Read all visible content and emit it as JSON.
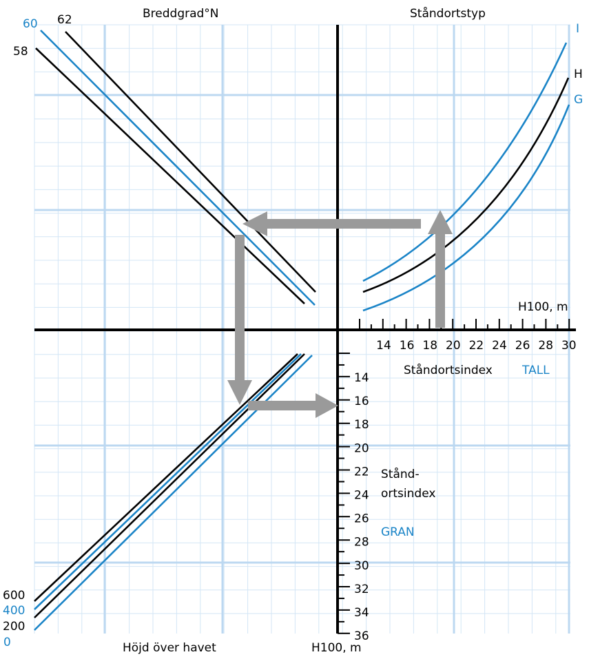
{
  "colors": {
    "black": "#000000",
    "blue": "#1a84c7",
    "grid_fine": "#cfe3f5",
    "grid_major": "#bcd8f1",
    "arrow": "#9a9a9a"
  },
  "top_left": {
    "title": "Breddgrad°N",
    "latitude_labels": {
      "l60": "60",
      "l62": "62",
      "l58": "58"
    }
  },
  "top_right": {
    "title": "Ståndortstyp",
    "curve_labels": {
      "I": "I",
      "H": "H",
      "G": "G"
    },
    "axis_unit": "H100, m",
    "axis_ticks": [
      "14",
      "16",
      "18",
      "20",
      "22",
      "24",
      "26",
      "28",
      "30"
    ],
    "index_label": "Ståndortsindex",
    "species": "TALL"
  },
  "bottom_right": {
    "axis_ticks": [
      "14",
      "16",
      "18",
      "20",
      "22",
      "24",
      "26",
      "28",
      "30",
      "32",
      "34",
      "36"
    ],
    "index_label_line1": "Stånd-",
    "index_label_line2": "ortsindex",
    "species": "GRAN",
    "axis_unit": "H100, m"
  },
  "bottom_left": {
    "title": "Höjd över havet",
    "altitude_labels": {
      "a600": "600",
      "a400": "400",
      "a200": "200",
      "a0": "0"
    }
  }
}
